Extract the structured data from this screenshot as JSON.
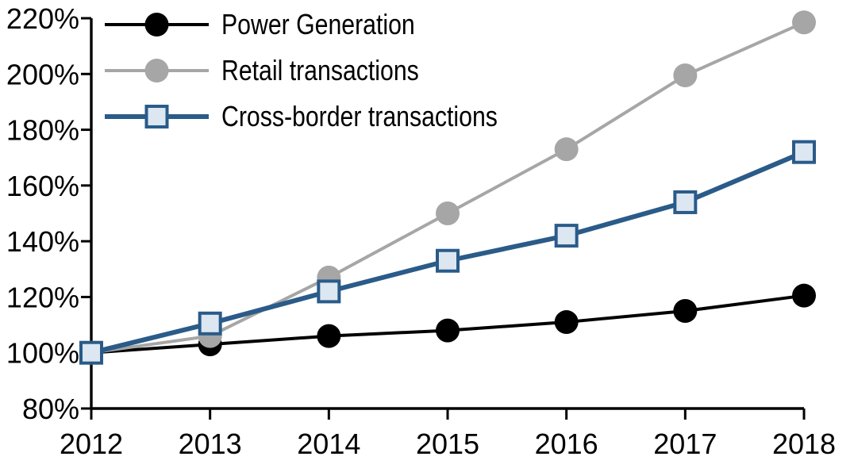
{
  "figure": {
    "background_color": "#ffffff",
    "text_color": "#000000",
    "axis_color": "#000000"
  },
  "chart_data": {
    "type": "line",
    "title": "",
    "xlabel": "",
    "ylabel": "",
    "x": [
      "2012",
      "2013",
      "2014",
      "2015",
      "2016",
      "2017",
      "2018"
    ],
    "series": [
      {
        "name": "Power Generation",
        "color": "#000000",
        "marker": "circle",
        "marker_fill": "#000000",
        "line_width": 4,
        "values": [
          100,
          103,
          106,
          108,
          111,
          115,
          120.5
        ]
      },
      {
        "name": "Retail transactions",
        "color": "#a6a6a6",
        "marker": "circle",
        "marker_fill": "#a6a6a6",
        "line_width": 4,
        "values": [
          100,
          106,
          127,
          150,
          173,
          199.5,
          218.5
        ]
      },
      {
        "name": "Cross-border transactions",
        "color": "#2a5b89",
        "marker": "square",
        "marker_fill": "#dce7f2",
        "line_width": 6,
        "values": [
          100,
          110.5,
          122,
          133,
          142,
          154,
          172
        ]
      }
    ],
    "y_axis": {
      "min": 80,
      "max": 220,
      "tick_step": 20,
      "tick_labels": [
        "80%",
        "100%",
        "120%",
        "140%",
        "160%",
        "180%",
        "200%",
        "220%"
      ],
      "unit": "percent"
    },
    "x_axis": {
      "tick_labels": [
        "2012",
        "2013",
        "2014",
        "2015",
        "2016",
        "2017",
        "2018"
      ]
    },
    "legend": {
      "position": "top-left",
      "items": [
        "Power Generation",
        "Retail transactions",
        "Cross-border transactions"
      ]
    },
    "grid": false
  }
}
